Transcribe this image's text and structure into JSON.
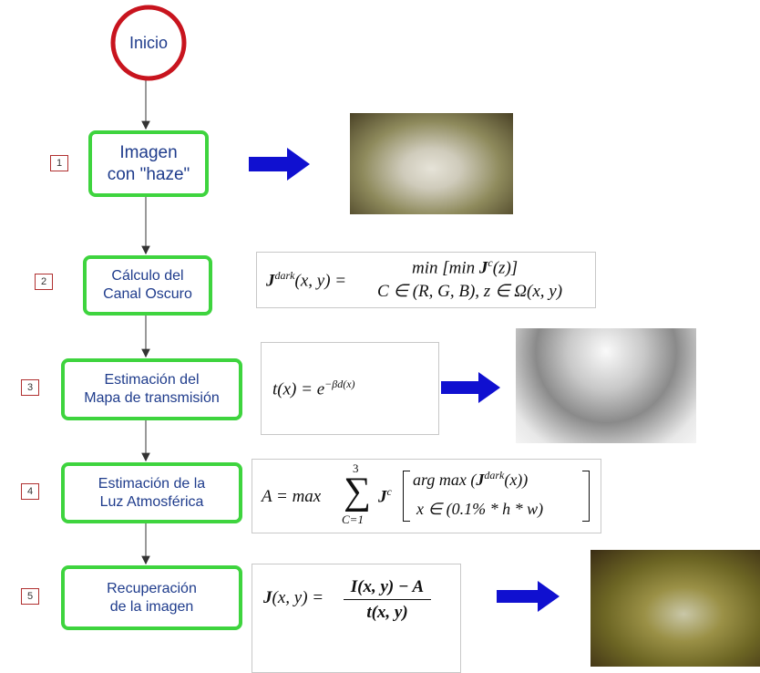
{
  "start": "Inicio",
  "steps": [
    {
      "number": 1,
      "lines": [
        "Imagen",
        "con \"haze\""
      ]
    },
    {
      "number": 2,
      "lines": [
        "Cálculo del",
        "Canal Oscuro"
      ]
    },
    {
      "number": 3,
      "lines": [
        "Estimación del",
        "Mapa de transmisión"
      ]
    },
    {
      "number": 4,
      "lines": [
        "Estimación de la",
        "Luz Atmosférica"
      ]
    },
    {
      "number": 5,
      "lines": [
        "Recuperación",
        "de la imagen"
      ]
    }
  ],
  "formulas": {
    "dark_channel": {
      "lhs": "J",
      "lhs_sup": "dark",
      "lhs_args": "(x, y) =",
      "top": "min  [min ",
      "top_J": "J",
      "top_sup": "c",
      "top_end": "(z)]",
      "bottom": "C ∈ (R, G, B),   z ∈ Ω(x, y)"
    },
    "transmission": {
      "lhs": "t(x) = e",
      "sup": "−βd(x)"
    },
    "atmospheric": {
      "lhs": "A = max",
      "sum": "∑",
      "sum_top": "3",
      "sum_bottom": "C=1",
      "J": "J",
      "J_sup": "c",
      "top": "arg max (",
      "top_J": "J",
      "top_sup": "dark",
      "top_end": "(x))",
      "bottom": "x ∈ (0.1% * h * w)"
    },
    "recovery": {
      "lhs": "J",
      "lhs_args": "(x, y) =",
      "numerator": "I(x, y) − A",
      "denominator": "t(x, y)"
    }
  }
}
